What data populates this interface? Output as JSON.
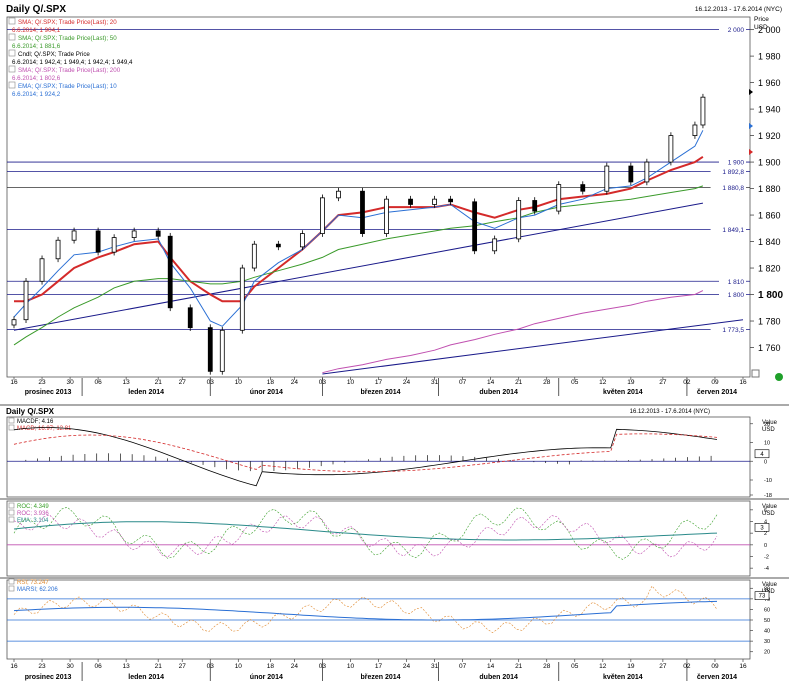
{
  "top_bar": {
    "title": "Daily Q/.SPX",
    "date_range": "16.12.2013 - 17.6.2014 (NYC)"
  },
  "main_panel": {
    "price_label": "Price",
    "price_unit": "USD",
    "legend": [
      {
        "name": "SMA; Q/.SPX; Trade Price(Last); 20",
        "value": "6.6.2014; 1 904,1",
        "color": "#d42a2a"
      },
      {
        "name": "SMA; Q/.SPX; Trade Price(Last); 50",
        "value": "6.6.2014; 1 881,6",
        "color": "#3a9a2a"
      },
      {
        "name": "Cndl; Q/.SPX; Trade Price",
        "value": "6.6.2014; 1 942,4; 1 949,4; 1 942,4; 1 949,4",
        "color": "#000000"
      },
      {
        "name": "SMA; Q/.SPX; Trade Price(Last); 200",
        "value": "6.6.2014; 1 802,6",
        "color": "#c050b0"
      },
      {
        "name": "EMA; Q/.SPX; Trade Price(Last); 10",
        "value": "6.6.2014; 1 924,2",
        "color": "#2a6fd4"
      }
    ],
    "y_ticks": [
      "2 000",
      "1 980",
      "1 960",
      "1 940",
      "1 920",
      "1 900",
      "1 880",
      "1 860",
      "1 840",
      "1 820",
      "1 800",
      "1 780",
      "1 760"
    ],
    "y_ticks_bold": [
      "1 800"
    ],
    "hline_labels": [
      "2 000",
      "1 900",
      "1 892,8",
      "1 880,8",
      "1 849,1",
      "1 810",
      "1 800",
      "1 773,5"
    ]
  },
  "macd_panel": {
    "title": "Daily Q/.SPX",
    "date_range": "16.12.2013 - 17.6.2014 (NYC)",
    "legend": [
      {
        "name": "MACDF; 4.16",
        "color": "#000000"
      },
      {
        "name": "MACD; 16.97; 12.81",
        "color": "#d42a2a"
      }
    ],
    "axis_title": "Value",
    "axis_unit": "USD",
    "y_ticks": [
      "20",
      "10",
      "0",
      "-10",
      "-18"
    ],
    "y_label": "4"
  },
  "roc_panel": {
    "legend": [
      {
        "name": "ROC; 4.349",
        "color": "#3aa02a"
      },
      {
        "name": "ROC; 3.936",
        "color": "#c050b0"
      },
      {
        "name": "EMA; 3.104",
        "color": "#2a8a8a"
      }
    ],
    "axis_title": "Value",
    "axis_unit": "USD",
    "y_ticks": [
      "6",
      "4",
      "2",
      "0",
      "-2",
      "-4"
    ],
    "y_label": "3"
  },
  "rsi_panel": {
    "legend": [
      {
        "name": "RSI; 73.247",
        "color": "#e08a30"
      },
      {
        "name": "MARSI; 62.206",
        "color": "#2a6fd4"
      }
    ],
    "axis_title": "Value",
    "axis_unit": "USD",
    "y_ticks": [
      "80",
      "70",
      "60",
      "50",
      "40",
      "30",
      "20"
    ],
    "y_label": "73"
  },
  "x_axis": {
    "day_ticks": [
      "16",
      "23",
      "30",
      "06",
      "13",
      "21",
      "27",
      "03",
      "10",
      "18",
      "24",
      "03",
      "10",
      "17",
      "24",
      "31",
      "07",
      "14",
      "21",
      "28",
      "05",
      "12",
      "19",
      "27",
      "02",
      "09",
      "16"
    ],
    "months": [
      "prosinec 2013",
      "leden 2014",
      "únor 2014",
      "březen 2014",
      "duben 2014",
      "květen 2014",
      "červen 2014"
    ]
  },
  "chart_data": {
    "type": "line",
    "title": "Daily Q/.SPX",
    "subtitle": "16.12.2013 - 17.6.2014 (NYC)",
    "ylabel": "Price USD",
    "ylim": [
      1740,
      2005
    ],
    "x": [
      "2013-12-16",
      "2013-12-19",
      "2013-12-23",
      "2013-12-27",
      "2013-12-31",
      "2014-01-06",
      "2014-01-10",
      "2014-01-15",
      "2014-01-21",
      "2014-01-24",
      "2014-01-29",
      "2014-02-03",
      "2014-02-06",
      "2014-02-11",
      "2014-02-14",
      "2014-02-20",
      "2014-02-26",
      "2014-03-03",
      "2014-03-07",
      "2014-03-13",
      "2014-03-19",
      "2014-03-25",
      "2014-03-31",
      "2014-04-04",
      "2014-04-10",
      "2014-04-15",
      "2014-04-21",
      "2014-04-25",
      "2014-05-01",
      "2014-05-07",
      "2014-05-13",
      "2014-05-19",
      "2014-05-23",
      "2014-05-29",
      "2014-06-04",
      "2014-06-06"
    ],
    "series": [
      {
        "name": "Cndl; Q/.SPX; Trade Price",
        "values": [
          1781,
          1810,
          1827,
          1841,
          1848,
          1832,
          1843,
          1848,
          1844,
          1790,
          1775,
          1742,
          1773,
          1820,
          1838,
          1836,
          1846,
          1873,
          1878,
          1846,
          1872,
          1868,
          1872,
          1870,
          1833,
          1842,
          1871,
          1863,
          1883,
          1878,
          1897,
          1885,
          1900,
          1920,
          1928,
          1949
        ]
      },
      {
        "name": "SMA; Q/.SPX; Trade Price(Last); 20",
        "values": [
          1795,
          1795,
          1800,
          1810,
          1820,
          1828,
          1832,
          1838,
          1840,
          1828,
          1810,
          1800,
          1795,
          1795,
          1806,
          1820,
          1834,
          1848,
          1860,
          1862,
          1866,
          1866,
          1866,
          1868,
          1862,
          1858,
          1864,
          1866,
          1872,
          1874,
          1876,
          1880,
          1886,
          1894,
          1900,
          1904
        ]
      },
      {
        "name": "SMA; Q/.SPX; Trade Price(Last); 50",
        "values": [
          1762,
          1768,
          1775,
          1783,
          1790,
          1798,
          1805,
          1810,
          1812,
          1812,
          1810,
          1808,
          1808,
          1810,
          1813,
          1818,
          1823,
          1828,
          1834,
          1838,
          1842,
          1845,
          1848,
          1850,
          1852,
          1855,
          1858,
          1862,
          1866,
          1868,
          1870,
          1872,
          1874,
          1877,
          1880,
          1882
        ]
      },
      {
        "name": "SMA; Q/.SPX; Trade Price(Last); 200",
        "values": [
          null,
          null,
          null,
          null,
          null,
          null,
          null,
          null,
          null,
          null,
          null,
          null,
          null,
          null,
          null,
          null,
          null,
          1741,
          1744,
          1747,
          1751,
          1754,
          1758,
          1762,
          1766,
          1770,
          1774,
          1778,
          1782,
          1786,
          1789,
          1792,
          1795,
          1798,
          1800,
          1803
        ]
      },
      {
        "name": "EMA; Q/.SPX; Trade Price(Last); 10",
        "values": [
          1783,
          1793,
          1805,
          1818,
          1830,
          1832,
          1836,
          1840,
          1842,
          1824,
          1805,
          1780,
          1776,
          1792,
          1810,
          1824,
          1834,
          1848,
          1860,
          1858,
          1862,
          1864,
          1866,
          1868,
          1855,
          1850,
          1858,
          1860,
          1868,
          1872,
          1880,
          1882,
          1888,
          1900,
          1912,
          1924
        ]
      }
    ],
    "hlines": [
      2000,
      1900,
      1892.8,
      1880.8,
      1849.1,
      1810,
      1800,
      1773.5
    ],
    "trendlines": [
      {
        "from": [
          "2013-12-16",
          1773
        ],
        "to": [
          "2014-06-06",
          1869
        ]
      },
      {
        "from": [
          "2014-03-03",
          1740
        ],
        "to": [
          "2014-06-16",
          1781
        ]
      }
    ],
    "indicators": {
      "macd": {
        "ylim": [
          -18,
          22
        ],
        "last": {
          "MACDF": 4.16,
          "MACD": 16.97,
          "signal": 12.81
        }
      },
      "roc": {
        "ylim": [
          -5,
          7
        ],
        "last": {
          "ROC_a": 4.349,
          "ROC_b": 3.936,
          "EMA": 3.104
        }
      },
      "rsi": {
        "ylim": [
          15,
          85
        ],
        "hlines": [
          70,
          50,
          30
        ],
        "last": {
          "RSI": 73.247,
          "MARSI": 62.206
        }
      }
    }
  }
}
